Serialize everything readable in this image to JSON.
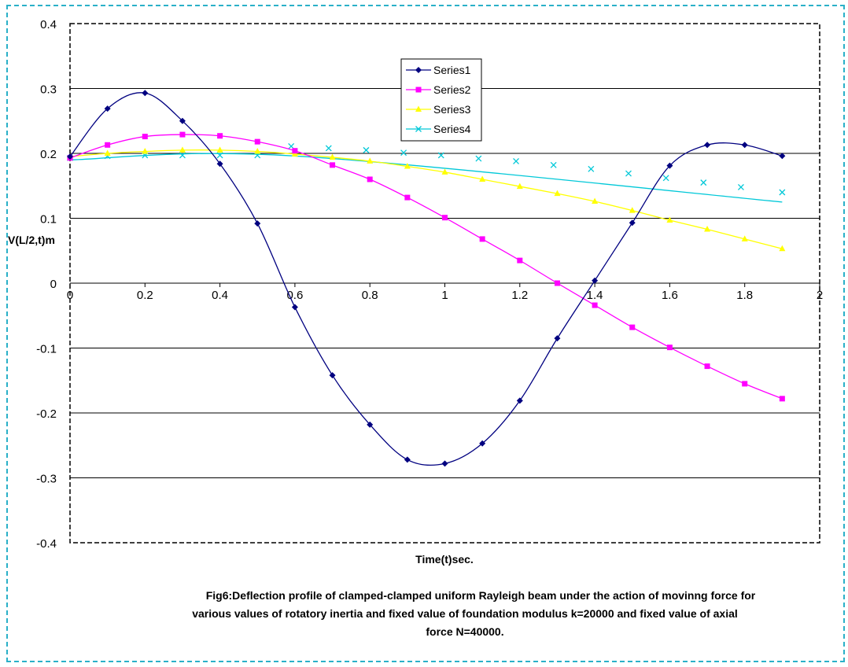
{
  "chart_data": {
    "type": "line",
    "xlabel": "Time(t)sec.",
    "ylabel": "V(L/2,t)m",
    "xlim": [
      0,
      2
    ],
    "ylim": [
      -0.4,
      0.4
    ],
    "x_ticks": [
      "0",
      "0.2",
      "0.4",
      "0.6",
      "0.8",
      "1",
      "1.2",
      "1.4",
      "1.6",
      "1.8",
      "2"
    ],
    "y_ticks": [
      "0.4",
      "0.3",
      "0.2",
      "0.1",
      "0",
      "-0.1",
      "-0.2",
      "-0.3",
      "-0.4"
    ],
    "grid": "horizontal",
    "legend_position": "top-center",
    "series": [
      {
        "name": "Series1",
        "color": "#000080",
        "marker": "diamond",
        "x": [
          0,
          0.1,
          0.2,
          0.3,
          0.4,
          0.5,
          0.6,
          0.7,
          0.8,
          0.9,
          1.0,
          1.1,
          1.2,
          1.3,
          1.4,
          1.5,
          1.6,
          1.7,
          1.8,
          1.9
        ],
        "y": [
          0.195,
          0.269,
          0.293,
          0.25,
          0.184,
          0.092,
          -0.037,
          -0.142,
          -0.218,
          -0.272,
          -0.278,
          -0.247,
          -0.181,
          -0.085,
          0.004,
          0.093,
          0.181,
          0.213,
          0.213,
          0.196
        ]
      },
      {
        "name": "Series2",
        "color": "#ff00ff",
        "marker": "square",
        "x": [
          0,
          0.1,
          0.2,
          0.3,
          0.4,
          0.5,
          0.6,
          0.7,
          0.8,
          0.9,
          1.0,
          1.1,
          1.2,
          1.3,
          1.4,
          1.5,
          1.6,
          1.7,
          1.8,
          1.9
        ],
        "y": [
          0.193,
          0.213,
          0.226,
          0.229,
          0.227,
          0.218,
          0.204,
          0.182,
          0.16,
          0.132,
          0.101,
          0.068,
          0.035,
          0.0,
          -0.034,
          -0.068,
          -0.099,
          -0.128,
          -0.155,
          -0.178
        ]
      },
      {
        "name": "Series3",
        "color": "#ffff00",
        "marker": "triangle",
        "x": [
          0,
          0.1,
          0.2,
          0.3,
          0.4,
          0.5,
          0.6,
          0.7,
          0.8,
          0.9,
          1.0,
          1.1,
          1.2,
          1.3,
          1.4,
          1.5,
          1.6,
          1.7,
          1.8,
          1.9
        ],
        "y": [
          0.195,
          0.2,
          0.203,
          0.205,
          0.205,
          0.203,
          0.199,
          0.194,
          0.188,
          0.18,
          0.171,
          0.16,
          0.149,
          0.138,
          0.126,
          0.112,
          0.097,
          0.083,
          0.068,
          0.053
        ]
      },
      {
        "name": "Series4",
        "color": "#00c8d8",
        "marker": "x",
        "x": [
          0,
          0.1,
          0.2,
          0.3,
          0.4,
          0.5,
          0.59,
          0.69,
          0.79,
          0.89,
          0.99,
          1.09,
          1.19,
          1.29,
          1.39,
          1.49,
          1.59,
          1.69,
          1.79,
          1.9
        ],
        "y": [
          0.193,
          0.196,
          0.197,
          0.197,
          0.197,
          0.197,
          0.211,
          0.208,
          0.205,
          0.201,
          0.197,
          0.192,
          0.188,
          0.182,
          0.176,
          0.169,
          0.162,
          0.155,
          0.148,
          0.14
        ],
        "trend_line": {
          "x": [
            0,
            0.6,
            1.9
          ],
          "y": [
            0.19,
            0.196,
            0.125
          ]
        }
      }
    ],
    "caption": [
      "Fig6:Deflection profile of clamped-clamped uniform Rayleigh beam under the action of movinng force for",
      "various values of rotatory inertia and fixed value of foundation modulus k=20000 and fixed value of axial",
      "force N=40000."
    ]
  }
}
